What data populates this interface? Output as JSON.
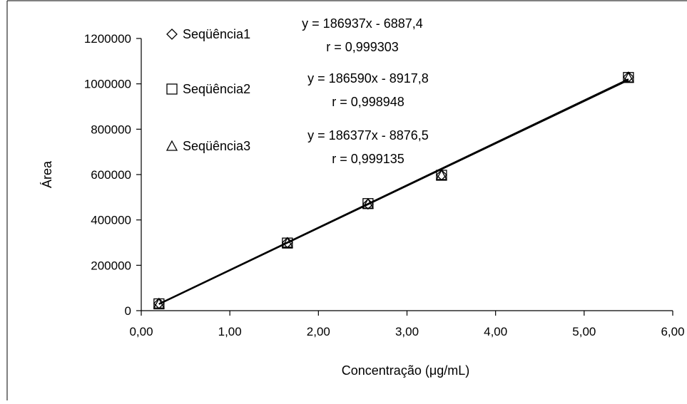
{
  "chart_data": {
    "type": "scatter",
    "title": "",
    "xlabel": "Concentração (μg/mL)",
    "ylabel": "Área",
    "xlim": [
      0,
      6
    ],
    "ylim": [
      0,
      1200000
    ],
    "x_ticks": [
      {
        "value": 0,
        "label": "0,00"
      },
      {
        "value": 1,
        "label": "1,00"
      },
      {
        "value": 2,
        "label": "2,00"
      },
      {
        "value": 3,
        "label": "3,00"
      },
      {
        "value": 4,
        "label": "4,00"
      },
      {
        "value": 5,
        "label": "5,00"
      },
      {
        "value": 6,
        "label": "6,00"
      }
    ],
    "y_ticks": [
      {
        "value": 0,
        "label": "0"
      },
      {
        "value": 200000,
        "label": "200000"
      },
      {
        "value": 400000,
        "label": "400000"
      },
      {
        "value": 600000,
        "label": "600000"
      },
      {
        "value": 800000,
        "label": "800000"
      },
      {
        "value": 1000000,
        "label": "1000000"
      },
      {
        "value": 1200000,
        "label": "1200000"
      }
    ],
    "grid": "none",
    "legend_position": "top-left",
    "series": [
      {
        "name": "Seqüência1",
        "marker": "diamond",
        "x": [
          0.2,
          1.65,
          2.56,
          3.39,
          5.5
        ],
        "y": [
          32000,
          300000,
          470000,
          598000,
          1030000
        ],
        "equation": "y = 186937x - 6887,4",
        "r": "r = 0,999303",
        "trendline": {
          "slope": 186937,
          "intercept": -6887.4
        }
      },
      {
        "name": "Seqüência2",
        "marker": "square",
        "x": [
          0.2,
          1.65,
          2.56,
          3.39,
          5.5
        ],
        "y": [
          30000,
          298000,
          472000,
          597000,
          1028000
        ],
        "equation": "y = 186590x - 8917,8",
        "r": "r = 0,998948",
        "trendline": {
          "slope": 186590,
          "intercept": -8917.8
        }
      },
      {
        "name": "Seqüência3",
        "marker": "triangle",
        "x": [
          0.2,
          1.65,
          2.56,
          3.39,
          5.5
        ],
        "y": [
          31000,
          299000,
          471000,
          597000,
          1027000
        ],
        "equation": "y = 186377x - 8876,5",
        "r": "r = 0,999135",
        "trendline": {
          "slope": 186377,
          "intercept": -8876.5
        }
      }
    ]
  }
}
